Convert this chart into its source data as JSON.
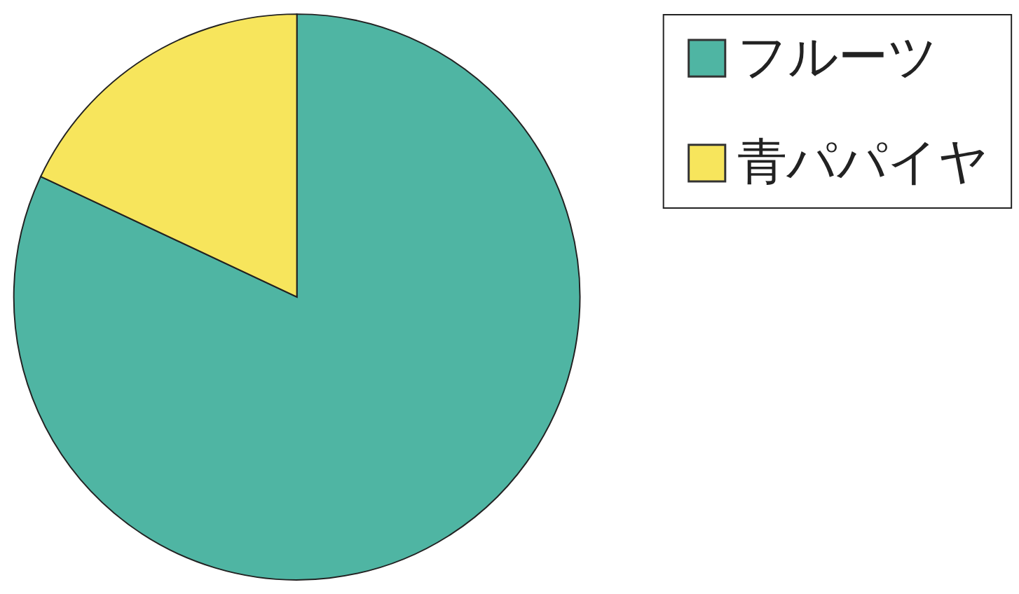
{
  "chart_data": {
    "type": "pie",
    "categories": [
      "フルーツ",
      "青パパイヤ"
    ],
    "values": [
      82,
      18
    ],
    "colors": [
      "#4fb5a3",
      "#f7e55c"
    ],
    "legend": "right"
  }
}
